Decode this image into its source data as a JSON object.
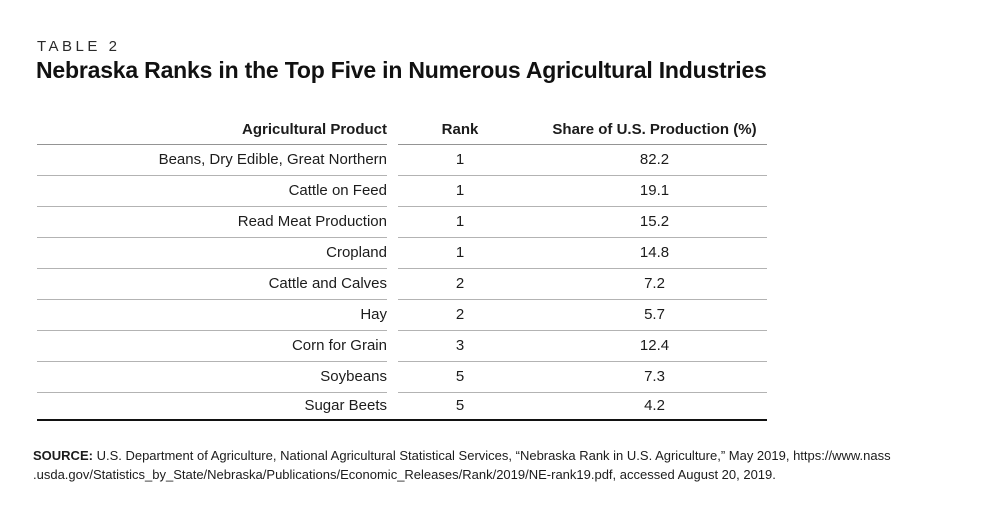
{
  "table_label": "TABLE 2",
  "title": "Nebraska Ranks in the Top Five in Numerous Agricultural Industries",
  "table": {
    "columns": [
      "Agricultural Product",
      "Rank",
      "Share of U.S. Production (%)"
    ],
    "rows": [
      {
        "product": "Beans, Dry Edible, Great Northern",
        "rank": "1",
        "share": "82.2"
      },
      {
        "product": "Cattle on Feed",
        "rank": "1",
        "share": "19.1"
      },
      {
        "product": "Read Meat Production",
        "rank": "1",
        "share": "15.2"
      },
      {
        "product": "Cropland",
        "rank": "1",
        "share": "14.8"
      },
      {
        "product": "Cattle and Calves",
        "rank": "2",
        "share": "7.2"
      },
      {
        "product": "Hay",
        "rank": "2",
        "share": "5.7"
      },
      {
        "product": "Corn for Grain",
        "rank": "3",
        "share": "12.4"
      },
      {
        "product": "Soybeans",
        "rank": "5",
        "share": "7.3"
      },
      {
        "product": "Sugar Beets",
        "rank": "5",
        "share": "4.2"
      }
    ]
  },
  "source": {
    "label": "SOURCE:",
    "lines": [
      " U.S. Department of Agriculture, National Agricultural Statistical Services, “Nebraska Rank in U.S. Agriculture,” May 2019, https://www.nass",
      ".usda.gov/Statistics_by_State/Nebraska/Publications/Economic_Releases/Rank/2019/NE-rank19.pdf, accessed August 20, 2019."
    ]
  },
  "colors": {
    "text": "#1c1c1c",
    "row_divider": "#b3b3b3",
    "header_divider": "#949494",
    "table_bottom_border": "#121212",
    "background": "#ffffff"
  }
}
